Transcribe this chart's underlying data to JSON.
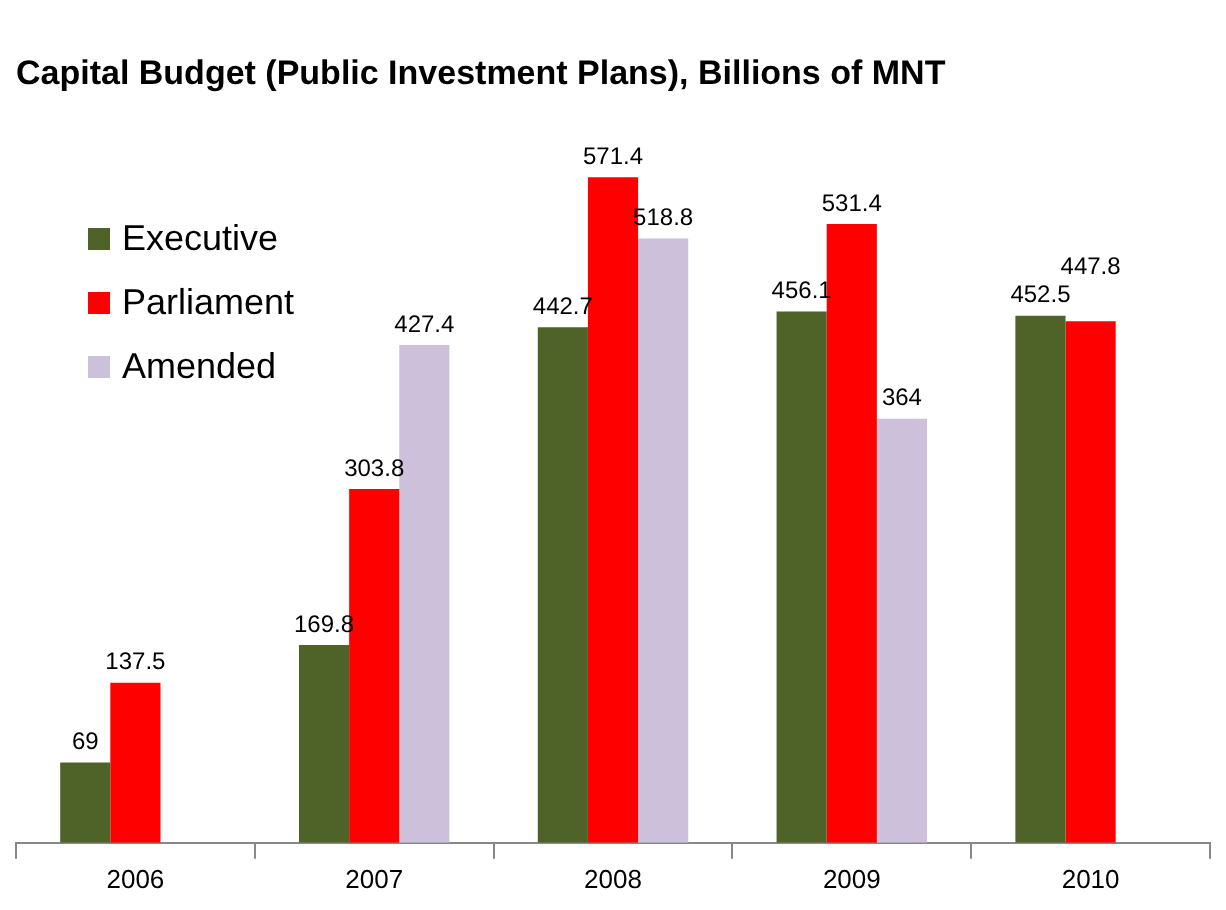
{
  "chart_data": {
    "type": "bar",
    "title": "Capital Budget (Public Investment Plans),  Billions of MNT",
    "categories": [
      "2006",
      "2007",
      "2008",
      "2009",
      "2010"
    ],
    "series": [
      {
        "name": "Executive",
        "color": "#4f6228",
        "values": [
          69,
          169.8,
          442.7,
          456.1,
          452.5
        ]
      },
      {
        "name": "Parliament",
        "color": "#ff0000",
        "values": [
          137.5,
          303.8,
          571.4,
          531.4,
          447.8
        ]
      },
      {
        "name": "Amended",
        "color": "#ccc0da",
        "values": [
          null,
          427.4,
          518.8,
          364,
          null
        ]
      }
    ],
    "data_labels": true,
    "grid": false,
    "legend": "top left"
  }
}
